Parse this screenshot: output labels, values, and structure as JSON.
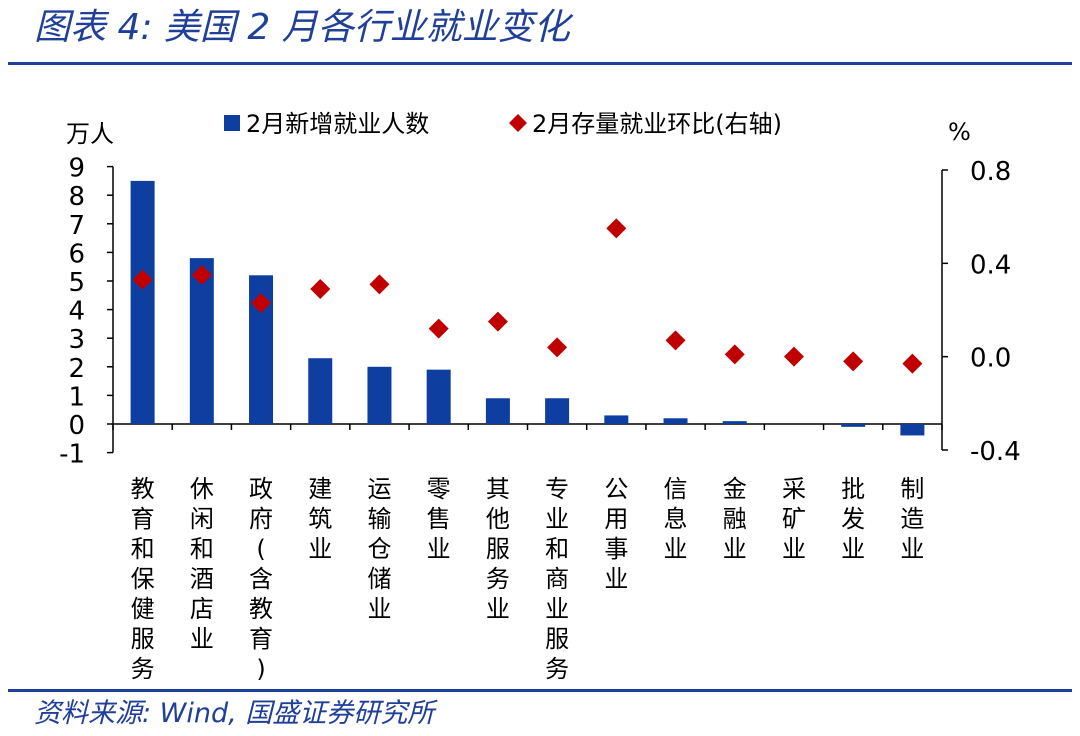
{
  "figure": {
    "title": "图表 4:  美国 2 月各行业就业变化",
    "source": "资料来源:  Wind, 国盛证券研究所"
  },
  "chart_data": {
    "type": "bar",
    "categories": [
      "教育和保健服务",
      "休闲和酒店业",
      "政府(含教育)",
      "建筑业",
      "运输仓储业",
      "零售业",
      "其他服务业",
      "专业和商业服务",
      "公用事业",
      "信息业",
      "金融业",
      "采矿业",
      "批发业",
      "制造业"
    ],
    "series": [
      {
        "name": "2月新增就业人数",
        "kind": "bar",
        "axis": "left",
        "color": "#0e3fa0",
        "values": [
          8.5,
          5.8,
          5.2,
          2.3,
          2.0,
          1.9,
          0.9,
          0.9,
          0.3,
          0.2,
          0.1,
          0.0,
          -0.1,
          -0.4
        ]
      },
      {
        "name": "2月存量就业环比(右轴)",
        "kind": "scatter",
        "marker": "diamond",
        "axis": "right",
        "color": "#c00000",
        "values": [
          0.33,
          0.35,
          0.23,
          0.29,
          0.31,
          0.12,
          0.15,
          0.04,
          0.55,
          0.07,
          0.01,
          0.0,
          -0.02,
          -0.03
        ]
      }
    ],
    "y_left": {
      "unit": "万人",
      "min": -1,
      "max": 9,
      "ticks": [
        -1,
        0,
        1,
        2,
        3,
        4,
        5,
        6,
        7,
        8,
        9
      ]
    },
    "y_right": {
      "unit": "%",
      "min": -0.4,
      "max": 0.8,
      "ticks": [
        -0.4,
        0.0,
        0.4,
        0.8
      ],
      "tick_labels": [
        "-0.4",
        "0.0",
        "0.4",
        "0.8"
      ]
    },
    "legend": {
      "placement": "top"
    },
    "grid": false
  }
}
